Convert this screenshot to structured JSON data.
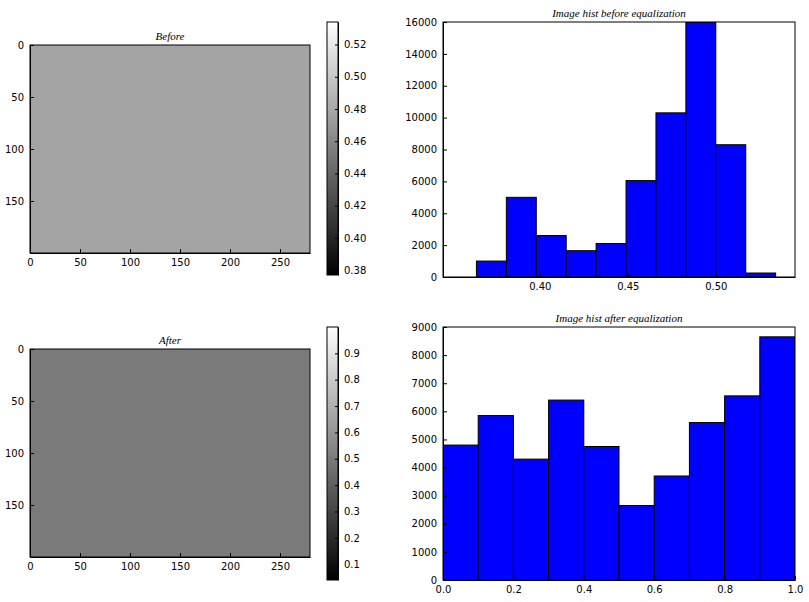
{
  "chart_data": [
    {
      "type": "image",
      "title": "Before",
      "xlim": [
        0,
        280
      ],
      "ylim": [
        200,
        0
      ],
      "xticks": [
        0,
        50,
        100,
        150,
        200,
        250
      ],
      "yticks": [
        0,
        50,
        100,
        150
      ],
      "colorbar": {
        "range": [
          0.377,
          0.534
        ],
        "ticks": [
          0.38,
          {
            "value": 0.4,
            "label": "0.40"
          },
          0.42,
          0.44,
          0.46,
          0.48,
          {
            "value": 0.5,
            "label": "0.50"
          },
          0.52
        ]
      }
    },
    {
      "type": "histogram",
      "title": "Image hist before equalization",
      "color": "#0000ff",
      "bins": [
        0.364,
        0.381,
        0.398,
        0.415,
        0.432,
        0.449,
        0.466,
        0.483,
        0.5,
        0.517,
        0.534
      ],
      "counts": [
        1000,
        5000,
        2600,
        1650,
        2100,
        6050,
        10300,
        16000,
        8300,
        250
      ],
      "xlim": [
        0.345,
        0.545
      ],
      "ylim": [
        0,
        16000
      ],
      "xticks": [
        {
          "value": 0.4,
          "label": "0.40"
        },
        0.45,
        {
          "value": 0.5,
          "label": "0.50"
        }
      ],
      "yticks": [
        0,
        2000,
        4000,
        6000,
        8000,
        10000,
        12000,
        14000,
        16000
      ]
    },
    {
      "type": "image",
      "title": "After",
      "xlim": [
        0,
        280
      ],
      "ylim": [
        200,
        0
      ],
      "xticks": [
        0,
        50,
        100,
        150,
        200,
        250
      ],
      "yticks": [
        0,
        50,
        100,
        150
      ],
      "colorbar": {
        "range": [
          0.04,
          1.0
        ],
        "ticks": [
          0.1,
          0.2,
          0.3,
          0.4,
          0.5,
          0.6,
          0.7,
          0.8,
          0.9
        ]
      }
    },
    {
      "type": "histogram",
      "title": "Image hist after equalization",
      "color": "#0000ff",
      "bins": [
        0,
        0.1,
        0.2,
        0.3,
        0.4,
        0.5,
        0.6,
        0.7,
        0.8,
        0.9,
        1.0
      ],
      "counts": [
        4800,
        5850,
        4300,
        6400,
        4750,
        2650,
        3700,
        5600,
        6550,
        8650
      ],
      "xlim": [
        0,
        1
      ],
      "ylim": [
        0,
        9000
      ],
      "xticks": [
        {
          "value": 0,
          "label": "0.0"
        },
        0.2,
        0.4,
        0.6,
        0.8,
        {
          "value": 1,
          "label": "1.0"
        }
      ],
      "yticks": [
        0,
        1000,
        2000,
        3000,
        4000,
        5000,
        6000,
        7000,
        8000,
        9000
      ]
    }
  ]
}
